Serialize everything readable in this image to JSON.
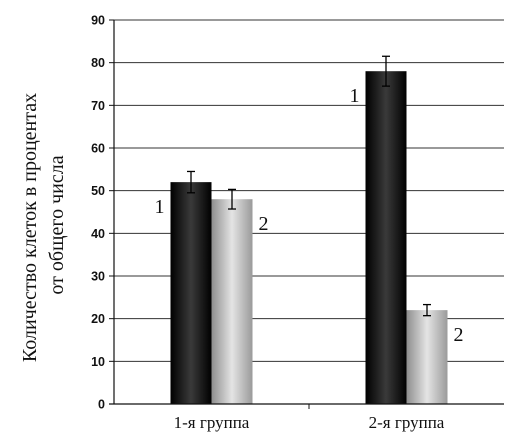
{
  "chart_data": {
    "type": "bar",
    "title": "",
    "xlabel": "",
    "ylabel_lines": [
      "Количество клеток в процентах",
      "от общего числа"
    ],
    "categories": [
      "1-я группа",
      "2-я группа"
    ],
    "ylim": [
      0,
      90
    ],
    "yticks": [
      0,
      10,
      20,
      30,
      40,
      50,
      60,
      70,
      80,
      90
    ],
    "grid": true,
    "series": [
      {
        "label": "1",
        "values": [
          52,
          78
        ],
        "errors": [
          2.5,
          3.5
        ],
        "color": "#111111"
      },
      {
        "label": "2",
        "values": [
          48,
          22
        ],
        "errors": [
          2.3,
          1.3
        ],
        "color": "#c8c8c8"
      }
    ]
  }
}
